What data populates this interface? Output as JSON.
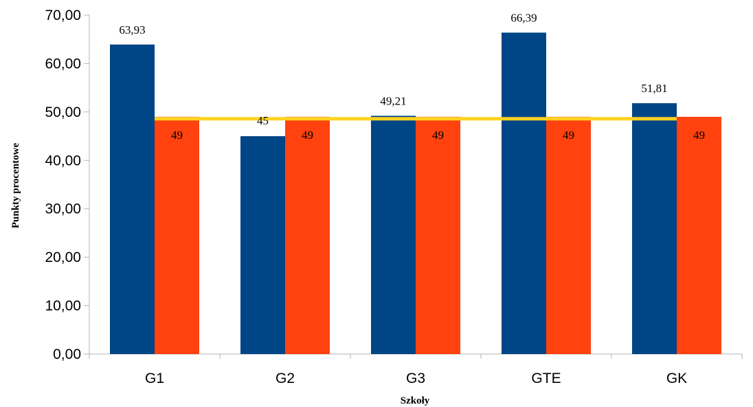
{
  "chart_data": {
    "type": "bar",
    "xlabel": "Szkoły",
    "ylabel": "Punkty procentowe",
    "categories": [
      "G1",
      "G2",
      "G3",
      "GTE",
      "GK"
    ],
    "series": [
      {
        "values": [
          63.93,
          45,
          49.21,
          66.39,
          51.81
        ],
        "labels": [
          "63,93",
          "45",
          "49,21",
          "66,39",
          "51,81"
        ],
        "color": "#004586"
      },
      {
        "values": [
          49,
          49,
          49,
          49,
          49
        ],
        "labels": [
          "49",
          "49",
          "49",
          "49",
          "49"
        ],
        "color": "#ff420e"
      }
    ],
    "reference_line": {
      "value": 48.6,
      "color": "#ffd320"
    },
    "ylim": [
      0,
      70
    ],
    "yticks": [
      0,
      10,
      20,
      30,
      40,
      50,
      60,
      70
    ],
    "ytick_labels": [
      "0,00",
      "10,00",
      "20,00",
      "30,00",
      "40,00",
      "50,00",
      "60,00",
      "70,00"
    ],
    "grid": false,
    "legend": "none"
  }
}
